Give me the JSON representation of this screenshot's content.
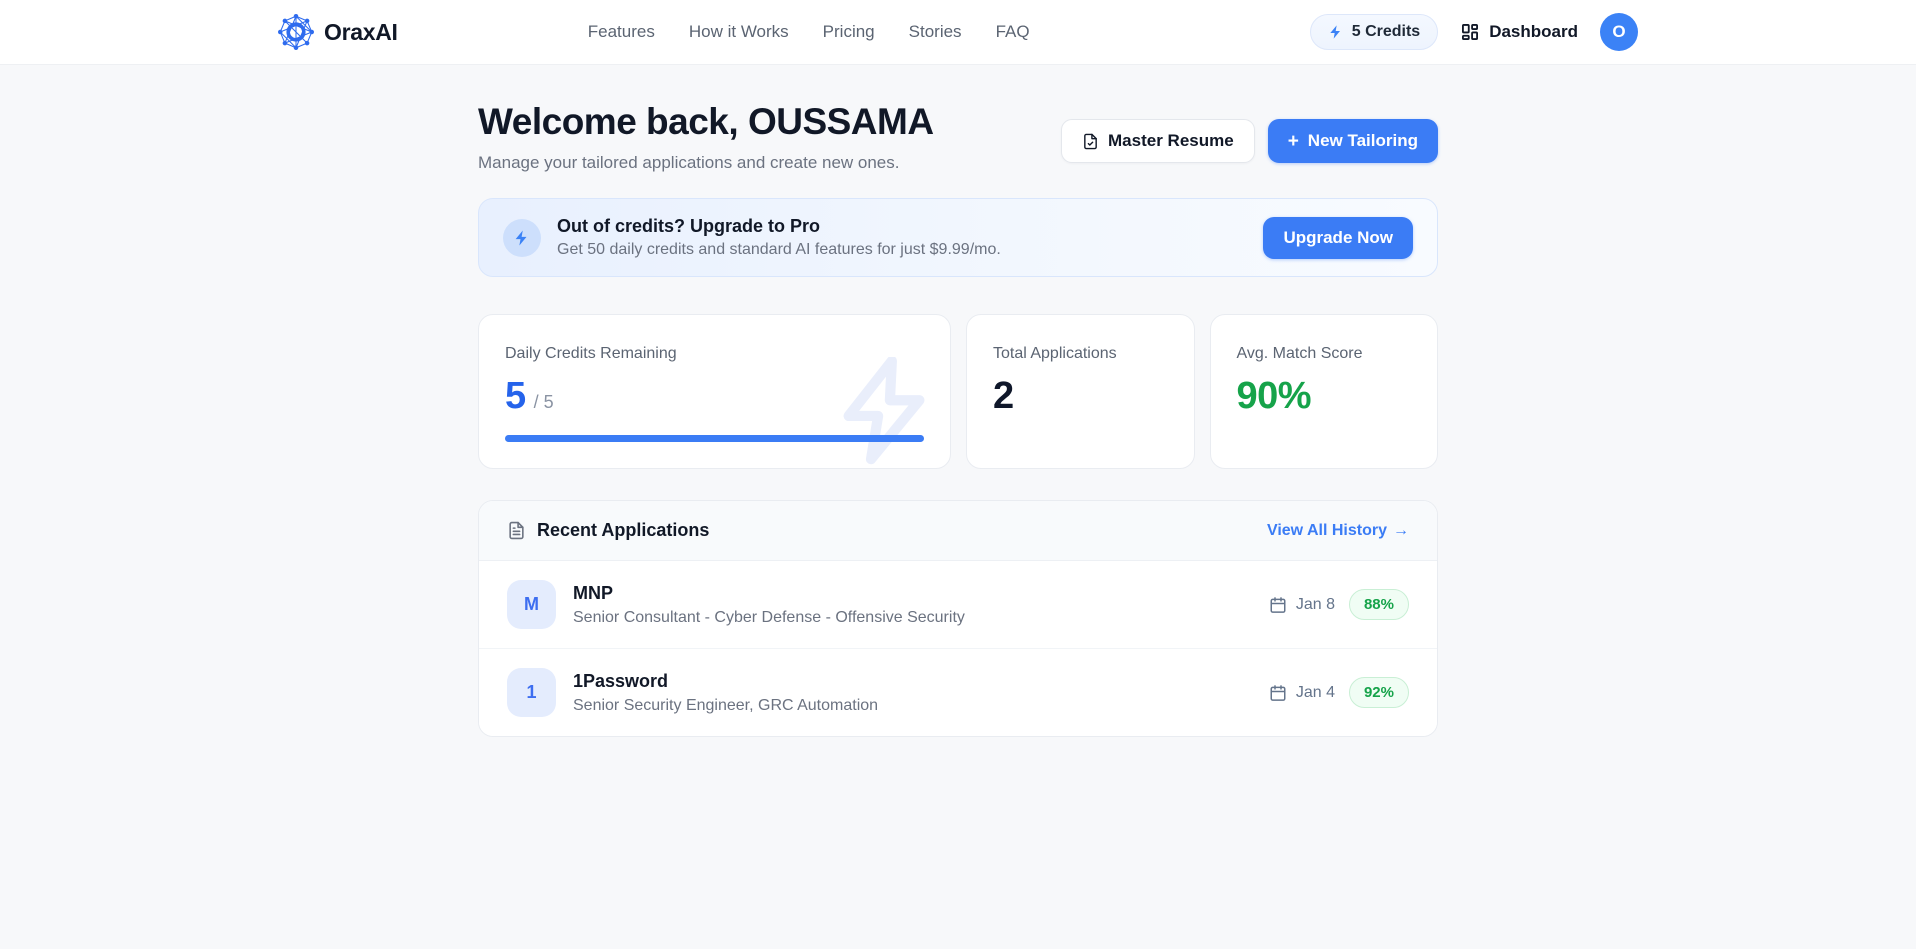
{
  "brand": {
    "name": "OraxAI"
  },
  "nav": {
    "links": [
      "Features",
      "How it Works",
      "Pricing",
      "Stories",
      "FAQ"
    ],
    "credits_label": "5 Credits",
    "dashboard_label": "Dashboard",
    "avatar_initial": "O"
  },
  "header": {
    "title": "Welcome back, OUSSAMA",
    "subtitle": "Manage your tailored applications and create new ones.",
    "master_resume_label": "Master Resume",
    "new_tailoring_label": "New Tailoring"
  },
  "banner": {
    "title": "Out of credits? Upgrade to Pro",
    "description": "Get 50 daily credits and standard AI features for just $9.99/mo.",
    "cta_label": "Upgrade Now"
  },
  "stats": {
    "daily_credits": {
      "label": "Daily Credits Remaining",
      "value": "5",
      "total": "/ 5",
      "progress_percent": 100
    },
    "total_applications": {
      "label": "Total Applications",
      "value": "2"
    },
    "avg_match": {
      "label": "Avg. Match Score",
      "value": "90%"
    }
  },
  "recent": {
    "title": "Recent Applications",
    "view_all_label": "View All History",
    "applications": [
      {
        "initial": "M",
        "company": "MNP",
        "role": "Senior Consultant - Cyber Defense - Offensive Security",
        "date": "Jan 8",
        "match": "88%"
      },
      {
        "initial": "1",
        "company": "1Password",
        "role": "Senior Security Engineer, GRC Automation",
        "date": "Jan 4",
        "match": "92%"
      }
    ]
  },
  "icons": {
    "plus": "+",
    "arrow_right": "→"
  },
  "colors": {
    "accent": "#3b7cf5",
    "accent_deep": "#2563eb",
    "success": "#16a34a",
    "badge_bg": "#f0fdf4"
  }
}
